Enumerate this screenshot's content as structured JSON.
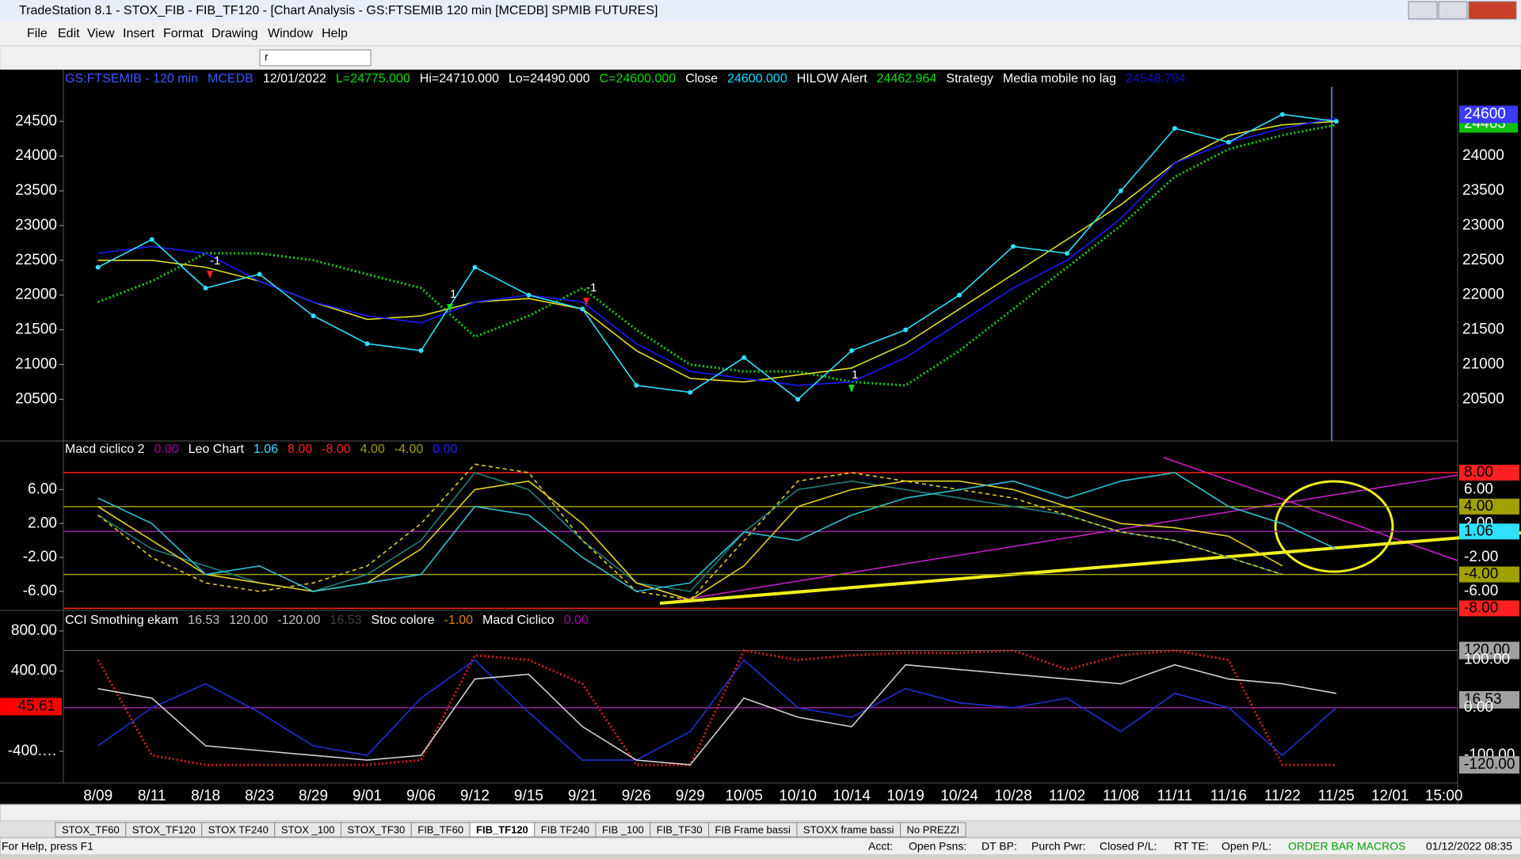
{
  "window": {
    "title": "TradeStation 8.1 - STOX_FIB - FIB_TF120 - [Chart Analysis - GS:FTSEMIB  120 min  [MCEDB] SPMIB FUTURES]",
    "menu": [
      "File",
      "Edit",
      "View",
      "Insert",
      "Format",
      "Drawing",
      "Window",
      "Help"
    ],
    "symbol": "r",
    "tabs": [
      "STOX_TF60",
      "STOX_TF120",
      "STOX TF240",
      "STOX _100",
      "STOX_TF30",
      "FIB_TF60",
      "FIB_TF120",
      "FIB TF240",
      "FIB _100",
      "FIB_TF30",
      "FIB Frame bassi",
      "STOXX frame bassi",
      "No PREZZI"
    ],
    "active_tab": 6,
    "status": [
      "For Help, press F1",
      "Acct:",
      "Open Psns:",
      "DT BP:",
      "Purch Pwr:",
      "Closed P/L:",
      "RT TE:",
      "Open P/L:",
      "ORDER BAR",
      "MACROS",
      "01/12/2022 08:35"
    ]
  },
  "chart_data": [
    {
      "type": "line",
      "header": [
        {
          "text": "GS:FTSEMIB - 120 min",
          "color": "#3a5aff"
        },
        {
          "text": "MCEDB",
          "color": "#3a5aff"
        },
        {
          "text": "12/01/2022",
          "color": "#ffffff"
        },
        {
          "text": "L=24775.000",
          "color": "#00e000"
        },
        {
          "text": "Hi=24710.000",
          "color": "#ffffff"
        },
        {
          "text": "Lo=24490.000",
          "color": "#ffffff"
        },
        {
          "text": "C=24600.000",
          "color": "#00e000"
        },
        {
          "text": "Close",
          "color": "#ffffff"
        },
        {
          "text": "24600.000",
          "color": "#00e0ff"
        },
        {
          "text": "HILOW Alert",
          "color": "#ffffff"
        },
        {
          "text": "24462.964",
          "color": "#00e000"
        },
        {
          "text": "Strategy",
          "color": "#ffffff"
        },
        {
          "text": "Media mobile no lag",
          "color": "#ffffff"
        },
        {
          "text": "24548.794",
          "color": "#1010c0"
        }
      ],
      "ylim": [
        19900,
        25130
      ],
      "yticks": [
        20500,
        21000,
        21500,
        22000,
        22500,
        23000,
        23500,
        24000,
        24500
      ],
      "annotations": [
        "-1",
        "-1",
        "1",
        "1"
      ],
      "last_values": [
        {
          "value": 24463,
          "label": "24463",
          "color": "#10c010"
        },
        {
          "value": 24600,
          "label": "24600",
          "color": "#3a3aff"
        }
      ],
      "series": [
        {
          "color": "#10d010",
          "style": "dotted",
          "values": [
            21900,
            22200,
            22600,
            22600,
            22500,
            22300,
            22100,
            21400,
            21700,
            22100,
            21500,
            21000,
            20900,
            20900,
            20750,
            20700,
            21200,
            21800,
            22400,
            23000,
            23700,
            24100,
            24300,
            24450,
            null,
            null
          ]
        },
        {
          "color": "#e0e020",
          "style": "solid",
          "values": [
            22500,
            22500,
            22400,
            22200,
            21900,
            21650,
            21700,
            21900,
            21950,
            21800,
            21200,
            20800,
            20750,
            20850,
            20950,
            21300,
            21800,
            22300,
            22800,
            23300,
            23900,
            24300,
            24450,
            24500,
            null,
            null
          ]
        },
        {
          "color": "#1a1aff",
          "style": "solid",
          "values": [
            22600,
            22700,
            22600,
            22200,
            21900,
            21700,
            21600,
            21900,
            22000,
            21900,
            21300,
            20900,
            20800,
            20700,
            20750,
            21100,
            21600,
            22100,
            22500,
            23100,
            23900,
            24200,
            24400,
            24550,
            null,
            null
          ]
        },
        {
          "color": "#30e0ff",
          "style": "dots",
          "values": [
            22400,
            22800,
            22100,
            22300,
            21700,
            21300,
            21200,
            22400,
            22000,
            21800,
            20700,
            20600,
            21100,
            20500,
            21200,
            21500,
            22000,
            22700,
            22600,
            23500,
            24400,
            24200,
            24600,
            24500,
            null,
            null
          ]
        }
      ]
    },
    {
      "type": "line",
      "header": [
        {
          "text": "Macd ciclico 2",
          "color": "#ffffff"
        },
        {
          "text": "0.00",
          "color": "#a000a0"
        },
        {
          "text": "Leo Chart",
          "color": "#ffffff"
        },
        {
          "text": "1.06",
          "color": "#30e0ff"
        },
        {
          "text": "8.00",
          "color": "#ff2020"
        },
        {
          "text": "-8.00",
          "color": "#ff2020"
        },
        {
          "text": "4.00",
          "color": "#a0a000"
        },
        {
          "text": "-4.00",
          "color": "#a0a000"
        },
        {
          "text": "0.00",
          "color": "#2020ff"
        }
      ],
      "ylim": [
        -8.24,
        11.73
      ],
      "yticks": [
        {
          "value": 6,
          "label": "6.00"
        },
        {
          "value": 2,
          "label": "2.00"
        },
        {
          "value": -2,
          "label": "-2.00"
        },
        {
          "value": -6,
          "label": "-6.00"
        }
      ],
      "right_ticks": [
        {
          "value": 8,
          "label": "8.00"
        },
        {
          "value": 6,
          "label": "6.00"
        },
        {
          "value": 4,
          "label": "4.00"
        },
        {
          "value": 2,
          "label": "2.00"
        },
        {
          "value": 1.06,
          "label": "1.06"
        },
        {
          "value": -2,
          "label": "-2.00"
        },
        {
          "value": -4,
          "label": "-4.00"
        },
        {
          "value": -6,
          "label": "-6.00"
        },
        {
          "value": -8,
          "label": "-8.00"
        }
      ],
      "right_tick_colors": [
        "#ff2020",
        null,
        "#a0a000",
        null,
        "#30e0ff",
        null,
        "#a0a000",
        null,
        "#ff2020"
      ],
      "series": [
        {
          "color": "#1f7f7f",
          "style": "solid",
          "values": [
            3,
            -1,
            -3,
            -5,
            -6,
            -4,
            0,
            8,
            6,
            0,
            -5,
            -6,
            1,
            6,
            7,
            6,
            5,
            4,
            3,
            1,
            0,
            -2,
            -4,
            null,
            null,
            null
          ]
        },
        {
          "color": "#e0d020",
          "style": "dashed",
          "values": [
            3,
            -2,
            -5,
            -6,
            -5,
            -3,
            2,
            9,
            8,
            0,
            -6,
            -7,
            0,
            7,
            8,
            7,
            6,
            5,
            3,
            1,
            0,
            -2,
            -4,
            null,
            null,
            null
          ]
        },
        {
          "color": "#e0d020",
          "style": "solid",
          "values": [
            4,
            0,
            -4,
            -5,
            -6,
            -5,
            -1,
            6,
            7,
            2,
            -5,
            -7,
            -3,
            4,
            6,
            7,
            7,
            6,
            4,
            2,
            1.5,
            0.5,
            -3,
            null,
            null,
            null
          ]
        },
        {
          "color": "#30c0d0",
          "style": "solid",
          "values": [
            5,
            2,
            -4,
            -3,
            -6,
            -5,
            -4,
            4,
            3,
            -2,
            -6,
            -5,
            1,
            0,
            3,
            5,
            6,
            7,
            5,
            7,
            8,
            4,
            2,
            -1,
            null,
            null
          ]
        }
      ]
    },
    {
      "type": "line",
      "header": [
        {
          "text": "CCI Smothing ekam",
          "color": "#ffffff"
        },
        {
          "text": "16.53",
          "color": "#c0c0c0"
        },
        {
          "text": "120.00",
          "color": "#c0c0c0"
        },
        {
          "text": "-120.00",
          "color": "#c0c0c0"
        },
        {
          "text": "16.53",
          "color": "#404040"
        },
        {
          "text": "Stoc colore",
          "color": "#ffffff"
        },
        {
          "text": "-1.00",
          "color": "#e08000"
        },
        {
          "text": "Macd Ciclico",
          "color": "#ffffff"
        },
        {
          "text": "0.00",
          "color": "#a000a0"
        }
      ],
      "categories": [
        "8/09",
        "8/11",
        "8/18",
        "8/23",
        "8/29",
        "9/01",
        "9/06",
        "9/12",
        "9/15",
        "9/21",
        "9/26",
        "9/29",
        "10/05",
        "10/10",
        "10/14",
        "10/19",
        "10/24",
        "10/28",
        "11/02",
        "11/08",
        "11/11",
        "11/16",
        "11/22",
        "11/25",
        "12/01",
        "15:00"
      ],
      "ylim": [
        -716,
        1005
      ],
      "yticks": [
        {
          "value": 800,
          "label": "800.00"
        },
        {
          "value": 400,
          "label": "400.00"
        },
        {
          "value": -400,
          "label": "-400.…"
        }
      ],
      "left_marker": {
        "value": 45.61,
        "label": "45.61",
        "color": "#ff0000"
      },
      "y2lim": [
        -158,
        204
      ],
      "y2ticks": [
        {
          "value": 120,
          "label": "120.00"
        },
        {
          "value": 100,
          "label": "100.00"
        },
        {
          "value": 16.53,
          "label": "16.53"
        },
        {
          "value": 0,
          "label": "0.00"
        },
        {
          "value": -100,
          "label": "-100.00"
        },
        {
          "value": -120,
          "label": "-120.00"
        }
      ],
      "series": [
        {
          "axis": "y2",
          "color": "#d02020",
          "style": "dotted",
          "values": [
            100,
            -100,
            -120,
            -120,
            -120,
            -120,
            -110,
            110,
            100,
            50,
            -120,
            -120,
            120,
            100,
            110,
            115,
            115,
            120,
            80,
            110,
            120,
            100,
            -120,
            -120,
            null,
            null
          ]
        },
        {
          "axis": "y2",
          "color": "#2030d0",
          "style": "solid",
          "values": [
            -80,
            0,
            50,
            -10,
            -80,
            -100,
            20,
            100,
            -10,
            -110,
            -110,
            -50,
            100,
            0,
            -20,
            40,
            10,
            0,
            20,
            -50,
            30,
            0,
            -100,
            0,
            null,
            null
          ]
        },
        {
          "axis": "y2",
          "color": "#d0d0d0",
          "style": "solid",
          "values": [
            40,
            20,
            -80,
            -90,
            -100,
            -110,
            -100,
            60,
            70,
            -40,
            -110,
            -120,
            20,
            -20,
            -40,
            90,
            80,
            70,
            60,
            50,
            90,
            60,
            50,
            30,
            null,
            null
          ]
        }
      ]
    }
  ]
}
